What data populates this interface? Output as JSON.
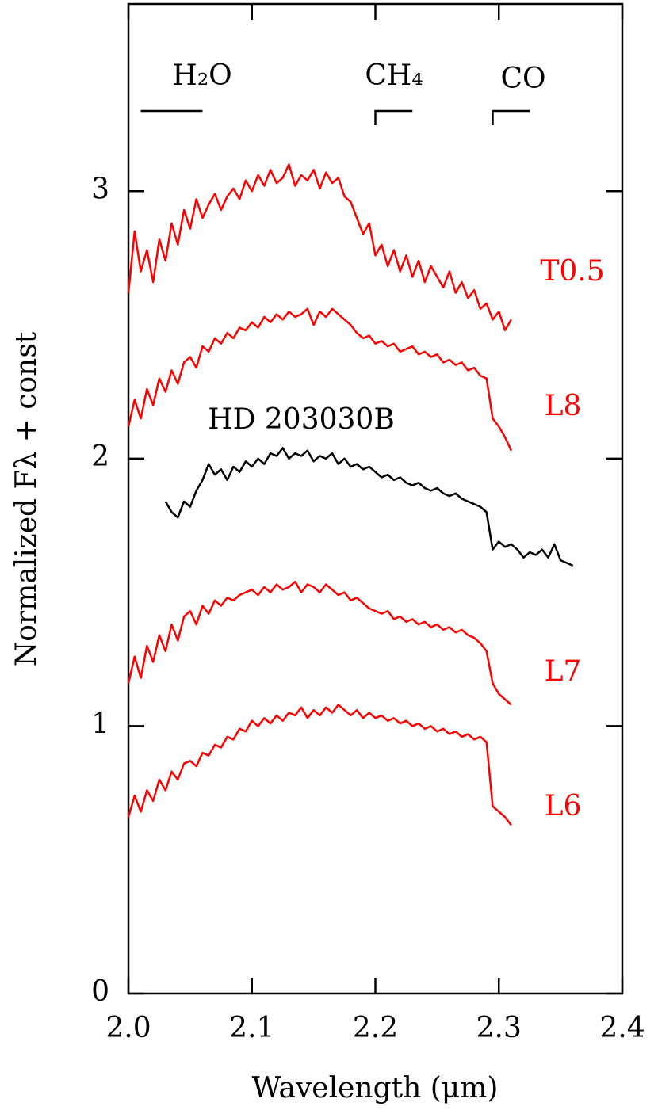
{
  "chart_data": {
    "type": "line",
    "xlabel": "Wavelength (μm)",
    "ylabel": "Normalized Fλ + const",
    "xlim": [
      2.0,
      2.4
    ],
    "ylim": [
      0,
      3.7
    ],
    "xticks": [
      {
        "value": 2.0,
        "label": "2.0"
      },
      2.1,
      2.2,
      2.3,
      2.4
    ],
    "yticks": [
      0,
      1,
      2,
      3
    ],
    "annotations": [
      {
        "text": "H₂O",
        "range": [
          2.01,
          2.06
        ],
        "y": 3.3
      },
      {
        "text": "CH₄",
        "range": [
          2.2,
          2.23
        ],
        "y": 3.3
      },
      {
        "text": "CO",
        "range": [
          2.295,
          2.325
        ],
        "y": 3.3
      }
    ],
    "x": [
      2,
      2.005,
      2.01,
      2.015,
      2.02,
      2.025,
      2.03,
      2.035,
      2.04,
      2.045,
      2.05,
      2.055,
      2.06,
      2.065,
      2.07,
      2.075,
      2.08,
      2.085,
      2.09,
      2.095,
      2.1,
      2.105,
      2.11,
      2.115,
      2.12,
      2.125,
      2.13,
      2.135,
      2.14,
      2.145,
      2.15,
      2.155,
      2.16,
      2.165,
      2.17,
      2.175,
      2.18,
      2.185,
      2.19,
      2.195,
      2.2,
      2.205,
      2.21,
      2.215,
      2.22,
      2.225,
      2.23,
      2.235,
      2.24,
      2.245,
      2.25,
      2.255,
      2.26,
      2.265,
      2.27,
      2.275,
      2.28,
      2.285,
      2.29,
      2.295,
      2.3,
      2.305,
      2.31
    ],
    "series": [
      {
        "name": "T0.5",
        "color": "#ff0000",
        "values": [
          2.62,
          2.85,
          2.7,
          2.78,
          2.66,
          2.82,
          2.74,
          2.88,
          2.8,
          2.93,
          2.86,
          2.97,
          2.9,
          2.95,
          2.99,
          2.93,
          2.98,
          3.01,
          2.97,
          3.04,
          3.0,
          3.06,
          3.02,
          3.08,
          3.03,
          3.05,
          3.1,
          3.02,
          3.06,
          3.04,
          3.08,
          3.01,
          3.07,
          3.03,
          3.05,
          2.98,
          2.96,
          2.9,
          2.84,
          2.88,
          2.76,
          2.8,
          2.72,
          2.78,
          2.7,
          2.76,
          2.68,
          2.74,
          2.66,
          2.72,
          2.68,
          2.64,
          2.7,
          2.62,
          2.66,
          2.6,
          2.63,
          2.56,
          2.58,
          2.52,
          2.55,
          2.48,
          2.52
        ]
      },
      {
        "name": "L8",
        "color": "#ff0000",
        "values": [
          2.12,
          2.22,
          2.15,
          2.26,
          2.2,
          2.3,
          2.25,
          2.33,
          2.28,
          2.36,
          2.38,
          2.34,
          2.42,
          2.4,
          2.45,
          2.43,
          2.47,
          2.45,
          2.49,
          2.48,
          2.51,
          2.49,
          2.53,
          2.51,
          2.54,
          2.52,
          2.55,
          2.53,
          2.54,
          2.56,
          2.5,
          2.55,
          2.53,
          2.56,
          2.54,
          2.52,
          2.5,
          2.47,
          2.45,
          2.46,
          2.43,
          2.44,
          2.42,
          2.43,
          2.4,
          2.41,
          2.42,
          2.39,
          2.4,
          2.38,
          2.39,
          2.36,
          2.37,
          2.35,
          2.36,
          2.33,
          2.34,
          2.31,
          2.3,
          2.15,
          2.12,
          2.08,
          2.03
        ]
      },
      {
        "name": "HD 203030B",
        "color": "#000000",
        "x": [
          2.03,
          2.035,
          2.04,
          2.045,
          2.05,
          2.055,
          2.06,
          2.065,
          2.07,
          2.075,
          2.08,
          2.085,
          2.09,
          2.095,
          2.1,
          2.105,
          2.11,
          2.115,
          2.12,
          2.125,
          2.13,
          2.135,
          2.14,
          2.145,
          2.15,
          2.155,
          2.16,
          2.165,
          2.17,
          2.175,
          2.18,
          2.185,
          2.19,
          2.195,
          2.2,
          2.205,
          2.21,
          2.215,
          2.22,
          2.225,
          2.23,
          2.235,
          2.24,
          2.245,
          2.25,
          2.255,
          2.26,
          2.265,
          2.27,
          2.275,
          2.28,
          2.285,
          2.29,
          2.295,
          2.3,
          2.305,
          2.31,
          2.315,
          2.32,
          2.325,
          2.33,
          2.335,
          2.34,
          2.345,
          2.35,
          2.355,
          2.36
        ],
        "values": [
          1.84,
          1.8,
          1.78,
          1.84,
          1.82,
          1.88,
          1.92,
          1.98,
          1.94,
          1.96,
          1.92,
          1.97,
          1.95,
          1.99,
          1.97,
          2.0,
          1.98,
          2.02,
          2.01,
          2.04,
          2.0,
          2.02,
          2.01,
          2.03,
          1.99,
          2.01,
          2.0,
          2.02,
          1.98,
          2.0,
          1.97,
          1.98,
          1.96,
          1.97,
          1.95,
          1.93,
          1.94,
          1.92,
          1.93,
          1.91,
          1.9,
          1.91,
          1.89,
          1.88,
          1.89,
          1.87,
          1.86,
          1.87,
          1.85,
          1.84,
          1.83,
          1.82,
          1.8,
          1.66,
          1.69,
          1.67,
          1.68,
          1.66,
          1.63,
          1.65,
          1.64,
          1.66,
          1.63,
          1.68,
          1.62,
          1.61,
          1.6
        ]
      },
      {
        "name": "L7",
        "color": "#ff0000",
        "values": [
          1.16,
          1.26,
          1.18,
          1.3,
          1.24,
          1.34,
          1.28,
          1.38,
          1.32,
          1.41,
          1.43,
          1.38,
          1.45,
          1.42,
          1.47,
          1.45,
          1.48,
          1.47,
          1.49,
          1.5,
          1.51,
          1.49,
          1.52,
          1.5,
          1.53,
          1.51,
          1.52,
          1.54,
          1.5,
          1.53,
          1.52,
          1.5,
          1.53,
          1.51,
          1.49,
          1.5,
          1.47,
          1.48,
          1.46,
          1.44,
          1.43,
          1.42,
          1.43,
          1.4,
          1.41,
          1.39,
          1.4,
          1.38,
          1.39,
          1.37,
          1.38,
          1.36,
          1.37,
          1.35,
          1.36,
          1.34,
          1.33,
          1.31,
          1.28,
          1.16,
          1.12,
          1.1,
          1.08
        ]
      },
      {
        "name": "L6",
        "color": "#ff0000",
        "values": [
          0.66,
          0.74,
          0.68,
          0.76,
          0.72,
          0.8,
          0.76,
          0.83,
          0.8,
          0.86,
          0.87,
          0.85,
          0.9,
          0.89,
          0.93,
          0.92,
          0.96,
          0.95,
          0.99,
          0.98,
          1.02,
          1.0,
          1.03,
          1.01,
          1.04,
          1.02,
          1.05,
          1.04,
          1.07,
          1.03,
          1.06,
          1.04,
          1.07,
          1.05,
          1.08,
          1.06,
          1.04,
          1.06,
          1.03,
          1.05,
          1.03,
          1.04,
          1.02,
          1.03,
          1.01,
          1.02,
          1.0,
          1.01,
          0.99,
          1.0,
          0.98,
          0.99,
          0.97,
          0.98,
          0.96,
          0.97,
          0.95,
          0.96,
          0.94,
          0.7,
          0.68,
          0.66,
          0.63
        ]
      }
    ]
  }
}
